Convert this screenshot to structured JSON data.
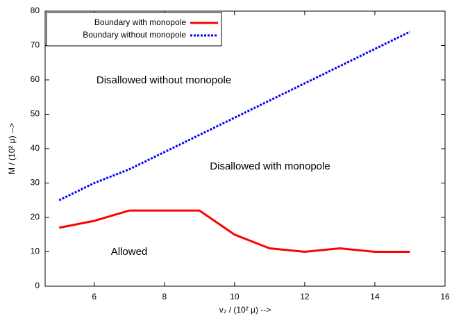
{
  "chart_data": {
    "type": "line",
    "x_label": "v₂ / (10² μ) -->",
    "y_label": "M / (10² μ) -->",
    "x": [
      5,
      6,
      7,
      8,
      9,
      10,
      11,
      12,
      13,
      14,
      15
    ],
    "series": [
      {
        "name": "Boundary with monopole",
        "color": "#ff0000",
        "dash": "solid",
        "values": [
          17,
          19,
          22,
          22,
          22,
          15,
          11,
          10,
          11,
          10,
          10
        ]
      },
      {
        "name": "Boundary without monopole",
        "color": "#0000ff",
        "dash": "dotted",
        "values": [
          25,
          30,
          34,
          39,
          44,
          49,
          54,
          59,
          64,
          69,
          74
        ]
      }
    ],
    "xlim": [
      4.6,
      16
    ],
    "xticks": [
      6,
      8,
      10,
      12,
      14,
      16
    ],
    "ylim": [
      0,
      80
    ],
    "yticks": [
      0,
      10,
      20,
      30,
      40,
      50,
      60,
      70,
      80
    ],
    "legend": "top-left",
    "annotations": [
      "Disallowed without monopole",
      "Disallowed with monopole",
      "Allowed"
    ]
  }
}
